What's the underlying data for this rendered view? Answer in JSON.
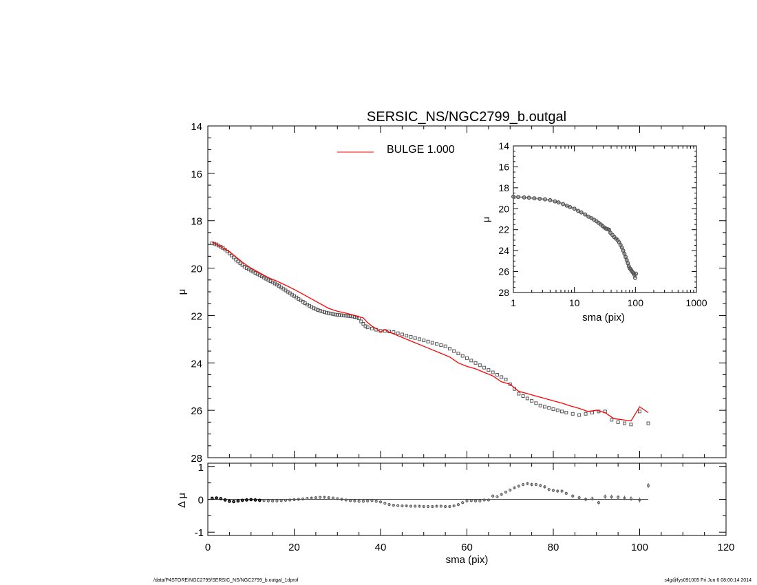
{
  "colors": {
    "axis": "#000000",
    "model": "#ff0000",
    "points": "#555555",
    "background": "#ffffff"
  },
  "footer": {
    "left": "/data/P4STORE/NGC2799/SERSIC_NS/NGC2799_b.outgal_1dprof",
    "right": "s4g@fys091005  Fri Jun  6 08:00:14 2014"
  },
  "chart_data": [
    {
      "id": "main",
      "type": "scatter",
      "title": "SERSIC_NS/NGC2799_b.outgal",
      "xlabel": "",
      "ylabel": "μ",
      "xlim": [
        0,
        120
      ],
      "ylim": [
        28,
        14
      ],
      "yticks": [
        "14",
        "16",
        "18",
        "20",
        "22",
        "24",
        "26",
        "28"
      ],
      "xticks": [
        "",
        "",
        "",
        "",
        "",
        "",
        ""
      ],
      "legend": {
        "placement": "top-center",
        "entries": [
          {
            "label": "BULGE  1.000",
            "color": "#ff0000"
          }
        ]
      },
      "series": [
        {
          "name": "data",
          "style": "squares",
          "x": [
            1.0,
            1.5,
            2.0,
            2.5,
            3.0,
            3.5,
            4.0,
            4.5,
            5.0,
            5.5,
            6.0,
            6.5,
            7.0,
            7.5,
            8.0,
            8.5,
            9.0,
            9.5,
            10.0,
            10.5,
            11.0,
            11.5,
            12.0,
            12.5,
            13.0,
            13.5,
            14.0,
            14.5,
            15.0,
            15.5,
            16.0,
            16.5,
            17.0,
            17.5,
            18.0,
            18.5,
            19.0,
            19.5,
            20.0,
            20.5,
            21.0,
            21.5,
            22.0,
            22.5,
            23.0,
            23.5,
            24.0,
            24.5,
            25.0,
            25.5,
            26.0,
            26.5,
            27.0,
            27.5,
            28.0,
            28.5,
            29.0,
            29.5,
            30.0,
            30.5,
            31.0,
            31.5,
            32.0,
            32.5,
            33.0,
            33.5,
            34.0,
            34.5,
            35.0,
            35.5,
            36.0,
            36.5,
            37.0,
            38.0,
            39.0,
            40.0,
            41.0,
            42.0,
            43.0,
            44.0,
            45.0,
            46.0,
            47.0,
            48.0,
            49.0,
            50.0,
            51.0,
            52.0,
            53.0,
            54.0,
            55.0,
            56.0,
            57.0,
            58.0,
            59.0,
            60.0,
            61.0,
            62.0,
            63.0,
            64.0,
            65.0,
            66.0,
            67.0,
            68.0,
            69.0,
            70.0,
            71.0,
            72.0,
            73.0,
            74.0,
            75.0,
            76.0,
            77.0,
            78.0,
            79.0,
            80.0,
            81.0,
            82.0,
            83.0,
            84.5,
            86.0,
            87.5,
            89.0,
            90.5,
            92.0,
            93.5,
            95.0,
            96.5,
            98.0,
            100.0,
            102.0
          ],
          "y": [
            18.95,
            18.97,
            19.0,
            19.05,
            19.1,
            19.15,
            19.22,
            19.3,
            19.38,
            19.47,
            19.55,
            19.64,
            19.72,
            19.8,
            19.87,
            19.94,
            20.0,
            20.05,
            20.1,
            20.15,
            20.2,
            20.25,
            20.3,
            20.35,
            20.4,
            20.45,
            20.5,
            20.55,
            20.6,
            20.65,
            20.7,
            20.76,
            20.82,
            20.88,
            20.94,
            21.0,
            21.06,
            21.12,
            21.18,
            21.24,
            21.3,
            21.36,
            21.42,
            21.48,
            21.54,
            21.59,
            21.64,
            21.69,
            21.73,
            21.77,
            21.8,
            21.83,
            21.86,
            21.88,
            21.9,
            21.92,
            21.94,
            21.96,
            21.97,
            21.98,
            21.99,
            22.0,
            22.01,
            22.02,
            22.03,
            22.04,
            22.06,
            22.08,
            22.12,
            22.25,
            22.35,
            22.45,
            22.5,
            22.55,
            22.6,
            22.65,
            22.65,
            22.67,
            22.7,
            22.75,
            22.8,
            22.85,
            22.9,
            22.95,
            23.0,
            23.05,
            23.1,
            23.15,
            23.2,
            23.25,
            23.3,
            23.4,
            23.5,
            23.6,
            23.7,
            23.8,
            23.9,
            24.0,
            24.1,
            24.2,
            24.3,
            24.4,
            24.5,
            24.6,
            24.7,
            24.9,
            25.1,
            25.3,
            25.4,
            25.5,
            25.6,
            25.7,
            25.8,
            25.85,
            25.9,
            25.95,
            26.0,
            26.05,
            26.1,
            26.15,
            26.2,
            26.15,
            26.1,
            26.05,
            26.05,
            26.4,
            26.5,
            26.55,
            26.6,
            26.05,
            26.55
          ]
        },
        {
          "name": "BULGE  1.000",
          "style": "line",
          "color": "#ff0000",
          "x": [
            1,
            2,
            3,
            4,
            5,
            6,
            7,
            8,
            10,
            12,
            14,
            16,
            18,
            20,
            22,
            24,
            26,
            28,
            30,
            32,
            34,
            36,
            37,
            38,
            39,
            40,
            41,
            42,
            44,
            46,
            48,
            50,
            52,
            54,
            56,
            58,
            60,
            62,
            64,
            66,
            68,
            70,
            72,
            74,
            76,
            78,
            80,
            82,
            84,
            86,
            88,
            90,
            92,
            94,
            96,
            98,
            100,
            102
          ],
          "y": [
            18.9,
            19.0,
            19.1,
            19.2,
            19.3,
            19.45,
            19.6,
            19.75,
            20.0,
            20.2,
            20.4,
            20.55,
            20.72,
            20.9,
            21.1,
            21.3,
            21.5,
            21.7,
            21.82,
            21.9,
            22.0,
            22.1,
            22.3,
            22.45,
            22.55,
            22.7,
            22.6,
            22.7,
            22.85,
            23.0,
            23.15,
            23.3,
            23.45,
            23.6,
            23.75,
            24.0,
            24.15,
            24.25,
            24.4,
            24.55,
            24.8,
            24.9,
            25.2,
            25.3,
            25.4,
            25.5,
            25.6,
            25.7,
            25.82,
            25.92,
            26.05,
            26.0,
            26.1,
            26.35,
            26.4,
            26.45,
            25.85,
            26.1
          ]
        }
      ]
    },
    {
      "id": "residual",
      "type": "scatter",
      "xlabel": "sma (pix)",
      "ylabel": "Δ μ",
      "xlim": [
        0,
        120
      ],
      "ylim": [
        -1.1,
        1.1
      ],
      "xticks": [
        "0",
        "20",
        "40",
        "60",
        "80",
        "100",
        "120"
      ],
      "yticks": [
        "-1",
        "0",
        "1"
      ],
      "series": [
        {
          "name": "residuals",
          "style": "points-errorbars",
          "x": [
            1,
            2,
            3,
            4,
            5,
            6,
            7,
            8,
            9,
            10,
            11,
            12,
            13,
            14,
            15,
            16,
            17,
            18,
            19,
            20,
            21,
            22,
            23,
            24,
            25,
            26,
            27,
            28,
            29,
            30,
            31,
            32,
            33,
            34,
            35,
            36,
            37,
            38,
            39,
            40,
            41,
            42,
            43,
            44,
            45,
            46,
            47,
            48,
            49,
            50,
            51,
            52,
            53,
            54,
            55,
            56,
            57,
            58,
            59,
            60,
            61,
            62,
            63,
            64,
            65,
            66,
            67,
            68,
            69,
            70,
            71,
            72,
            73,
            74,
            75,
            76,
            77,
            78,
            79,
            80,
            81,
            82,
            83,
            84.5,
            86,
            87.5,
            89,
            90.5,
            92,
            93.5,
            95,
            96.5,
            98,
            100,
            102
          ],
          "y": [
            0.03,
            0.04,
            0.02,
            -0.02,
            -0.06,
            -0.07,
            -0.05,
            -0.03,
            -0.02,
            -0.01,
            -0.02,
            -0.03,
            -0.04,
            -0.05,
            -0.05,
            -0.05,
            -0.04,
            -0.03,
            -0.02,
            -0.01,
            0.0,
            0.01,
            0.03,
            0.04,
            0.05,
            0.06,
            0.06,
            0.05,
            0.04,
            0.02,
            0.0,
            -0.02,
            -0.04,
            -0.05,
            -0.06,
            -0.06,
            -0.05,
            -0.04,
            -0.06,
            -0.08,
            -0.12,
            -0.16,
            -0.18,
            -0.19,
            -0.2,
            -0.2,
            -0.21,
            -0.21,
            -0.21,
            -0.22,
            -0.22,
            -0.22,
            -0.21,
            -0.21,
            -0.22,
            -0.22,
            -0.2,
            -0.16,
            -0.1,
            -0.05,
            -0.04,
            -0.05,
            -0.05,
            -0.02,
            -0.02,
            0.1,
            0.08,
            0.15,
            0.22,
            0.28,
            0.35,
            0.4,
            0.45,
            0.48,
            0.45,
            0.45,
            0.42,
            0.38,
            0.3,
            0.27,
            0.25,
            0.25,
            0.18,
            0.1,
            0.05,
            0.0,
            0.02,
            -0.1,
            0.08,
            0.07,
            0.06,
            0.04,
            0.02,
            -0.02,
            0.42
          ],
          "err": [
            0.01,
            0.01,
            0.01,
            0.01,
            0.01,
            0.01,
            0.01,
            0.01,
            0.01,
            0.01,
            0.01,
            0.01,
            0.01,
            0.01,
            0.01,
            0.01,
            0.01,
            0.01,
            0.01,
            0.01,
            0.01,
            0.01,
            0.01,
            0.01,
            0.01,
            0.01,
            0.01,
            0.01,
            0.01,
            0.01,
            0.01,
            0.01,
            0.01,
            0.01,
            0.01,
            0.01,
            0.01,
            0.01,
            0.02,
            0.02,
            0.02,
            0.02,
            0.02,
            0.02,
            0.02,
            0.02,
            0.02,
            0.02,
            0.02,
            0.02,
            0.02,
            0.02,
            0.02,
            0.02,
            0.02,
            0.02,
            0.03,
            0.03,
            0.03,
            0.03,
            0.03,
            0.03,
            0.03,
            0.03,
            0.03,
            0.04,
            0.04,
            0.04,
            0.04,
            0.04,
            0.04,
            0.04,
            0.05,
            0.05,
            0.05,
            0.05,
            0.05,
            0.05,
            0.05,
            0.05,
            0.05,
            0.05,
            0.05,
            0.06,
            0.06,
            0.06,
            0.06,
            0.06,
            0.07,
            0.07,
            0.07,
            0.07,
            0.07,
            0.08,
            0.08
          ]
        }
      ],
      "reference_line": {
        "y": 0
      }
    },
    {
      "id": "inset",
      "type": "scatter",
      "xscale": "log",
      "xlabel": "sma (pix)",
      "ylabel": "μ",
      "xlim": [
        1,
        1000
      ],
      "ylim": [
        28,
        14
      ],
      "xticks": [
        "1",
        "10",
        "100",
        "1000"
      ],
      "yticks": [
        "14",
        "16",
        "18",
        "20",
        "22",
        "24",
        "26",
        "28"
      ],
      "series": [
        {
          "name": "data",
          "style": "circles",
          "x": [
            1.0,
            1.2,
            1.5,
            1.8,
            2.2,
            2.7,
            3.3,
            4.0,
            4.8,
            5.5,
            6.5,
            7.5,
            8.5,
            10.0,
            11.5,
            13.0,
            15.0,
            17.0,
            19.0,
            21.0,
            23.0,
            25.0,
            27.0,
            29.0,
            31.0,
            33.0,
            35.0,
            37.0,
            39.0,
            42.0,
            45.0,
            48.0,
            51.0,
            54.0,
            57.0,
            60.0,
            63.0,
            66.0,
            69.0,
            72.0,
            75.0,
            78.0,
            81.0,
            84.0,
            87.0,
            90.0,
            93.0,
            96.0,
            99.0,
            102.0
          ],
          "y": [
            18.85,
            18.88,
            18.92,
            18.95,
            19.0,
            19.05,
            19.1,
            19.18,
            19.3,
            19.4,
            19.55,
            19.7,
            19.85,
            20.0,
            20.2,
            20.35,
            20.55,
            20.75,
            20.9,
            21.05,
            21.2,
            21.35,
            21.5,
            21.65,
            21.8,
            21.9,
            21.95,
            22.0,
            22.3,
            22.5,
            22.7,
            22.85,
            23.0,
            23.2,
            23.45,
            23.7,
            24.0,
            24.3,
            24.6,
            24.9,
            25.2,
            25.5,
            25.7,
            25.8,
            25.95,
            26.05,
            26.15,
            26.3,
            26.6,
            26.2
          ]
        }
      ]
    }
  ]
}
